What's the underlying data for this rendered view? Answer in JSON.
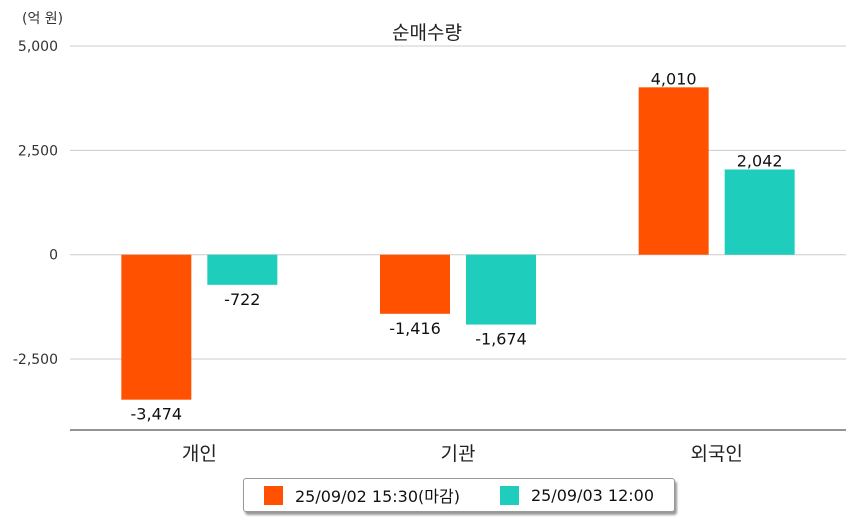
{
  "chart_data": {
    "type": "bar",
    "title": "순매수량",
    "unit_label": "(억 원)",
    "categories": [
      "개인",
      "기관",
      "외국인"
    ],
    "ylim": [
      -4200,
      5000
    ],
    "yticks": [
      5000,
      2500,
      0,
      -2500
    ],
    "ytick_labels": [
      "5,000",
      "2,500",
      "0",
      "-2,500"
    ],
    "grid": true,
    "legend_position": "bottom",
    "series": [
      {
        "name": "25/09/02 15:30(마감)",
        "color": "#ff5100",
        "values": [
          -3474,
          -1416,
          4010
        ],
        "labels": [
          "-3,474",
          "-1,416",
          "4,010"
        ]
      },
      {
        "name": "25/09/03 12:00",
        "color": "#1ecdbb",
        "values": [
          -722,
          -1674,
          2042
        ],
        "labels": [
          "-722",
          "-1,674",
          "2,042"
        ]
      }
    ]
  }
}
